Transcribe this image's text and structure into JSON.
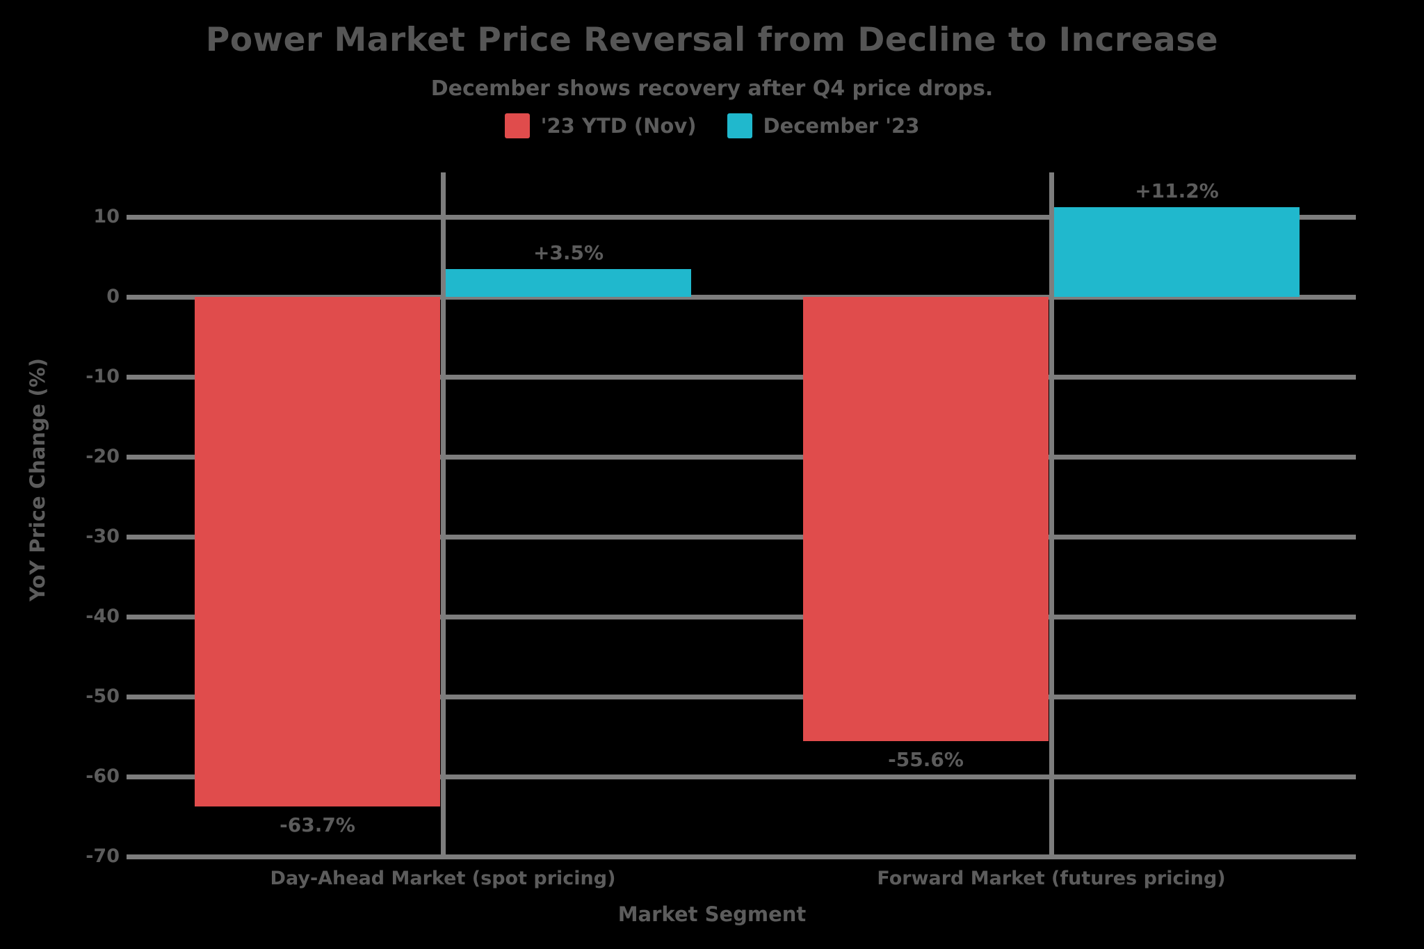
{
  "chart_data": {
    "type": "bar",
    "title": "Power Market Price Reversal from Decline to Increase",
    "subtitle": "December shows recovery after Q4 price drops.",
    "xlabel": "Market Segment",
    "ylabel": "YoY Price Change (%)",
    "categories": [
      "Day-Ahead Market (spot pricing)",
      "Forward Market (futures pricing)"
    ],
    "series": [
      {
        "name": "'23 YTD (Nov)",
        "color": "#e04c4c",
        "values": [
          -63.7,
          -55.6
        ],
        "data_labels": [
          "-63.7%",
          "-55.6%"
        ]
      },
      {
        "name": "December '23",
        "color": "#20b8cd",
        "values": [
          3.5,
          11.2
        ],
        "data_labels": [
          "+3.5%",
          "+11.2%"
        ]
      }
    ],
    "yticks": [
      10,
      0,
      -10,
      -20,
      -30,
      -40,
      -50,
      -60,
      -70
    ],
    "ylim": [
      -70,
      12
    ],
    "grid": true,
    "legend_position": "top-center"
  },
  "colors": {
    "background": "#000000",
    "title_text": "#565656",
    "text": "#5c5c5c",
    "grid": "#7d7d7d",
    "red_series": "#e04c4c",
    "cyan_series": "#20b8cd"
  }
}
